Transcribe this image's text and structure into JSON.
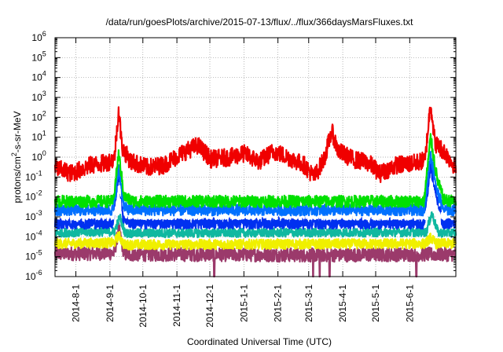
{
  "chart_data": {
    "type": "line",
    "title": "/data/run/goesPlots/archive/2015-07-13/flux/../flux/366daysMarsFluxes.txt",
    "xlabel": "Coordinated Universal Time (UTC)",
    "ylabel_main": "protons/cm",
    "ylabel_sup": "2",
    "ylabel_tail": "-s-sr-MeV",
    "yscale": "log",
    "ylim": [
      1e-06,
      1000000.0
    ],
    "y_ticks": [
      {
        "base": "10",
        "exp": "-6"
      },
      {
        "base": "10",
        "exp": "-5"
      },
      {
        "base": "10",
        "exp": "-4"
      },
      {
        "base": "10",
        "exp": "-3"
      },
      {
        "base": "10",
        "exp": "-2"
      },
      {
        "base": "10",
        "exp": "-1"
      },
      {
        "base": "10",
        "exp": "0"
      },
      {
        "base": "10",
        "exp": "1"
      },
      {
        "base": "10",
        "exp": "2"
      },
      {
        "base": "10",
        "exp": "3"
      },
      {
        "base": "10",
        "exp": "4"
      },
      {
        "base": "10",
        "exp": "5"
      },
      {
        "base": "10",
        "exp": "6"
      }
    ],
    "xlim": [
      "2014-07-13",
      "2015-07-13"
    ],
    "x_ticks": [
      "2014-8-1",
      "2014-9-1",
      "2014-10-1",
      "2014-11-1",
      "2014-12-1",
      "2015-1-1",
      "2015-2-1",
      "2015-3-1",
      "2015-4-1",
      "2015-5-1",
      "2015-6-1"
    ],
    "grid": true,
    "legend": "none",
    "series": [
      {
        "color": "#9b3a6b",
        "baseline": 1.4e-05,
        "noise": 0.35,
        "points": [
          [
            "2014-07-13",
            1.4e-05
          ],
          [
            "2014-09-05",
            1.5e-05
          ],
          [
            "2014-09-09",
            0.00025
          ],
          [
            "2014-09-14",
            1.3e-05
          ],
          [
            "2014-12-01",
            1.3e-05
          ],
          [
            "2015-03-01",
            1.2e-05
          ],
          [
            "2015-06-20",
            1.3e-05
          ],
          [
            "2015-07-13",
            1.3e-05
          ]
        ],
        "dips": [
          [
            "2014-12-05",
            1e-06
          ],
          [
            "2015-03-05",
            1e-06
          ],
          [
            "2015-03-11",
            1e-06
          ],
          [
            "2015-03-20",
            1e-06
          ],
          [
            "2015-06-07",
            1e-06
          ]
        ]
      },
      {
        "color": "#f0f000",
        "baseline": 4.5e-05,
        "noise": 0.25,
        "points": [
          [
            "2014-07-13",
            4.5e-05
          ],
          [
            "2014-09-05",
            5e-05
          ],
          [
            "2014-09-09",
            0.00012
          ],
          [
            "2014-09-14",
            4e-05
          ],
          [
            "2015-06-15",
            4.5e-05
          ],
          [
            "2015-06-20",
            9e-05
          ],
          [
            "2015-06-25",
            4.5e-05
          ],
          [
            "2015-07-13",
            4.5e-05
          ]
        ],
        "dips": []
      },
      {
        "color": "#10b8a0",
        "baseline": 0.00016,
        "noise": 0.22,
        "points": [
          [
            "2014-07-13",
            0.00016
          ],
          [
            "2014-09-05",
            0.00018
          ],
          [
            "2014-09-10",
            0.001
          ],
          [
            "2014-09-15",
            0.00015
          ],
          [
            "2015-06-16",
            0.00017
          ],
          [
            "2015-06-21",
            0.0015
          ],
          [
            "2015-06-27",
            0.00016
          ],
          [
            "2015-07-13",
            0.00016
          ]
        ],
        "dips": []
      },
      {
        "color": "#0030f0",
        "baseline": 0.0005,
        "noise": 0.3,
        "points": [
          [
            "2014-07-13",
            0.0005
          ],
          [
            "2014-09-04",
            0.0005
          ],
          [
            "2014-09-09",
            0.2
          ],
          [
            "2014-09-13",
            0.001
          ],
          [
            "2014-09-20",
            0.0005
          ],
          [
            "2015-01-15",
            0.0005
          ],
          [
            "2015-06-14",
            0.0005
          ],
          [
            "2015-06-20",
            0.4
          ],
          [
            "2015-06-25",
            0.01
          ],
          [
            "2015-07-01",
            0.0005
          ],
          [
            "2015-07-13",
            0.0005
          ]
        ],
        "dips": []
      },
      {
        "color": "#ffffff",
        "baseline": 0.0011,
        "noise": 0.2,
        "points": [
          [
            "2014-07-13",
            0.0011
          ],
          [
            "2014-09-05",
            0.0011
          ],
          [
            "2014-09-10",
            0.03
          ],
          [
            "2014-09-15",
            0.0012
          ],
          [
            "2015-06-15",
            0.0011
          ],
          [
            "2015-06-21",
            0.04
          ],
          [
            "2015-06-27",
            0.0012
          ],
          [
            "2015-07-13",
            0.0011
          ]
        ],
        "dips": []
      },
      {
        "color": "#0070ff",
        "baseline": 0.0022,
        "noise": 0.28,
        "points": [
          [
            "2014-07-13",
            0.0022
          ],
          [
            "2014-09-04",
            0.0022
          ],
          [
            "2014-09-09",
            0.3
          ],
          [
            "2014-09-14",
            0.003
          ],
          [
            "2014-09-20",
            0.0022
          ],
          [
            "2015-06-14",
            0.0022
          ],
          [
            "2015-06-20",
            1.5
          ],
          [
            "2015-06-26",
            0.02
          ],
          [
            "2015-07-02",
            0.0022
          ],
          [
            "2015-07-13",
            0.0022
          ]
        ],
        "dips": []
      },
      {
        "color": "#00e000",
        "baseline": 0.006,
        "noise": 0.3,
        "points": [
          [
            "2014-07-13",
            0.006
          ],
          [
            "2014-09-04",
            0.006
          ],
          [
            "2014-09-09",
            1.5
          ],
          [
            "2014-09-14",
            0.01
          ],
          [
            "2014-09-22",
            0.006
          ],
          [
            "2015-06-14",
            0.006
          ],
          [
            "2015-06-20",
            10.0
          ],
          [
            "2015-06-26",
            0.08
          ],
          [
            "2015-07-02",
            0.007
          ],
          [
            "2015-07-13",
            0.006
          ]
        ],
        "dips": []
      },
      {
        "color": "#f00000",
        "baseline": 0.3,
        "noise": 0.45,
        "points": [
          [
            "2014-07-13",
            0.3
          ],
          [
            "2014-07-28",
            0.15
          ],
          [
            "2014-08-15",
            0.4
          ],
          [
            "2014-08-28",
            0.5
          ],
          [
            "2014-09-05",
            0.8
          ],
          [
            "2014-09-09",
            250.0
          ],
          [
            "2014-09-12",
            3
          ],
          [
            "2014-09-20",
            0.6
          ],
          [
            "2014-10-05",
            0.3
          ],
          [
            "2014-10-20",
            0.4
          ],
          [
            "2014-11-05",
            1.5
          ],
          [
            "2014-11-20",
            4
          ],
          [
            "2014-12-02",
            0.8
          ],
          [
            "2014-12-20",
            1
          ],
          [
            "2015-01-01",
            1.5
          ],
          [
            "2015-01-15",
            0.6
          ],
          [
            "2015-01-28",
            2
          ],
          [
            "2015-02-10",
            1
          ],
          [
            "2015-02-25",
            0.4
          ],
          [
            "2015-03-06",
            0.1
          ],
          [
            "2015-03-15",
            0.8
          ],
          [
            "2015-03-22",
            20.0
          ],
          [
            "2015-03-28",
            2
          ],
          [
            "2015-04-10",
            0.8
          ],
          [
            "2015-04-25",
            0.5
          ],
          [
            "2015-05-05",
            0.15
          ],
          [
            "2015-05-20",
            0.4
          ],
          [
            "2015-06-05",
            0.5
          ],
          [
            "2015-06-15",
            0.7
          ],
          [
            "2015-06-20",
            600.0
          ],
          [
            "2015-06-24",
            5
          ],
          [
            "2015-07-02",
            2
          ],
          [
            "2015-07-13",
            0.3
          ]
        ],
        "dips": []
      }
    ]
  }
}
